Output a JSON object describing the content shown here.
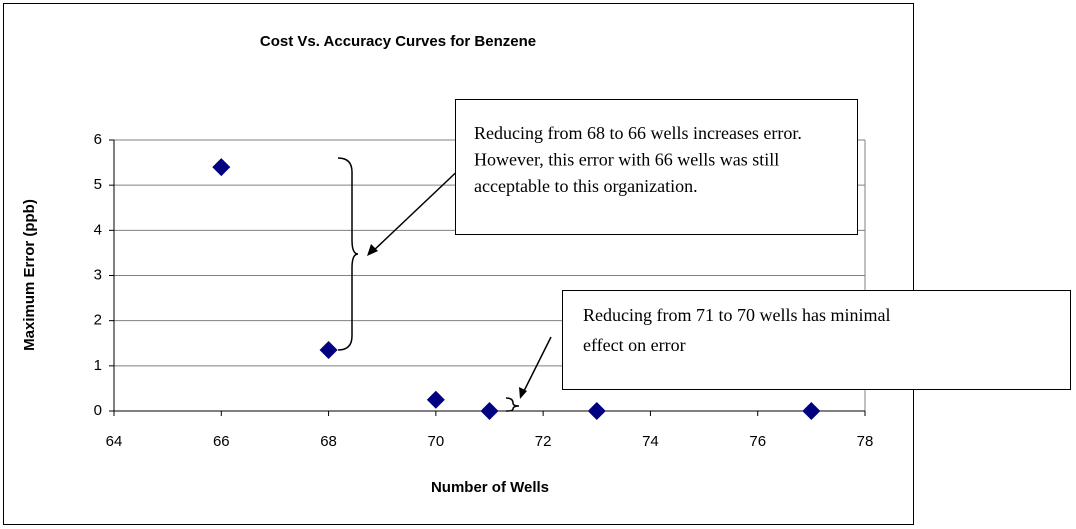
{
  "chart_data": {
    "type": "scatter",
    "title": "Cost Vs. Accuracy Curves for Benzene",
    "xlabel": "Number of Wells",
    "ylabel": "Maximum Error (ppb)",
    "x": [
      66,
      68,
      70,
      71,
      73,
      77
    ],
    "values": [
      5.4,
      1.35,
      0.25,
      0,
      0,
      0
    ],
    "color": "#000080",
    "xlim": [
      64,
      78
    ],
    "xticks": [
      64,
      66,
      68,
      70,
      72,
      74,
      76,
      78
    ],
    "ylim": [
      0,
      6
    ],
    "yticks": [
      0,
      1,
      2,
      3,
      4,
      5,
      6
    ],
    "grid": true,
    "annotations": [
      {
        "lines": [
          "Reducing from 68 to 66 wells increases error.",
          "However, this error with 66 wells was still",
          "acceptable to this organization."
        ]
      },
      {
        "lines": [
          "Reducing from 71 to 70 wells has minimal",
          "effect on error"
        ]
      }
    ]
  }
}
